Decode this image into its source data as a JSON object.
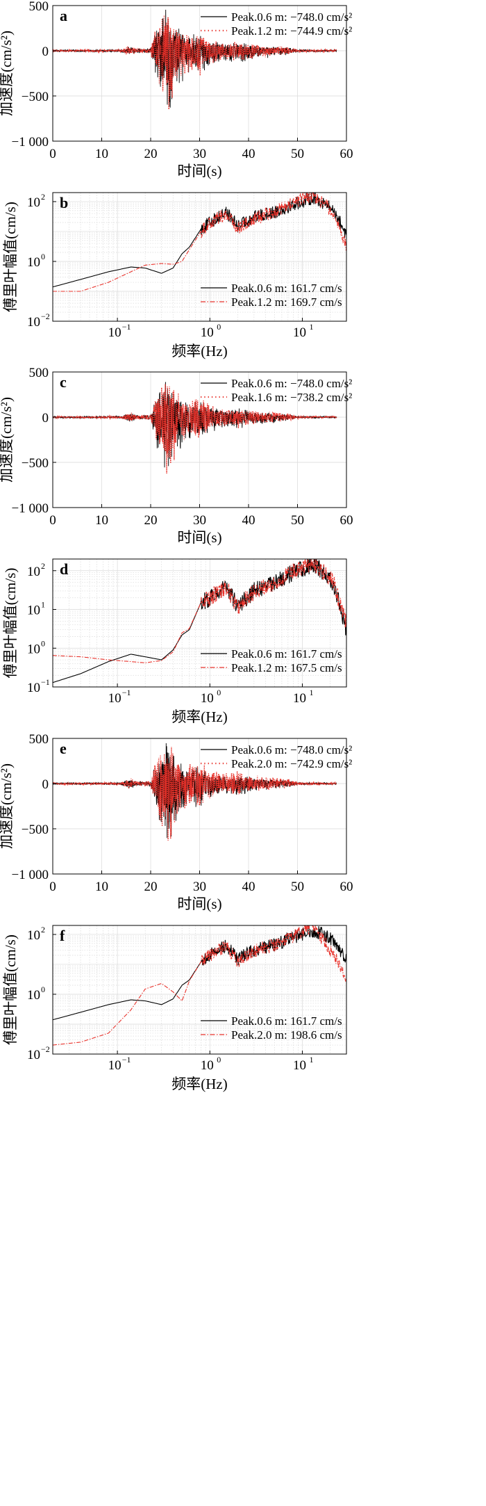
{
  "panels": [
    {
      "id": "a",
      "label": "a",
      "ylabel": "加速度(cm/s²)",
      "xlabel": "时间(s)",
      "legend": [
        "Peak.0.6 m: −748.0 cm/s²",
        "Peak.1.2 m: −744.9 cm/s²"
      ]
    },
    {
      "id": "b",
      "label": "b",
      "ylabel": "傅里叶幅值(cm/s)",
      "xlabel": "频率(Hz)",
      "legend": [
        "Peak.0.6 m: 161.7 cm/s",
        "Peak.1.2 m: 169.7 cm/s"
      ]
    },
    {
      "id": "c",
      "label": "c",
      "ylabel": "加速度(cm/s²)",
      "xlabel": "时间(s)",
      "legend": [
        "Peak.0.6 m: −748.0 cm/s²",
        "Peak.1.6 m: −738.2 cm/s²"
      ]
    },
    {
      "id": "d",
      "label": "d",
      "ylabel": "傅里叶幅值(cm/s)",
      "xlabel": "频率(Hz)",
      "legend": [
        "Peak.0.6 m: 161.7 cm/s",
        "Peak.1.2 m: 167.5 cm/s"
      ]
    },
    {
      "id": "e",
      "label": "e",
      "ylabel": "加速度(cm/s²)",
      "xlabel": "时间(s)",
      "legend": [
        "Peak.0.6 m: −748.0 cm/s²",
        "Peak.2.0 m: −742.9 cm/s²"
      ]
    },
    {
      "id": "f",
      "label": "f",
      "ylabel": "傅里叶幅值(cm/s)",
      "xlabel": "频率(Hz)",
      "legend": [
        "Peak.0.6 m: 161.7 cm/s",
        "Peak.2.0 m: 198.6 cm/s"
      ]
    }
  ],
  "colors": {
    "series_ref": "#000000",
    "series_cmp": "#e8312a",
    "grid": "#d9d9d9",
    "axis": "#000000"
  },
  "chart_data": [
    {
      "panel": "a",
      "type": "line",
      "title": "",
      "xlabel": "时间(s)",
      "ylabel": "加速度(cm/s²)",
      "xlim": [
        0,
        60
      ],
      "ylim": [
        -1000,
        500
      ],
      "xticks": [
        0,
        10,
        20,
        30,
        40,
        50,
        60
      ],
      "yticks": [
        -1000,
        -500,
        0,
        500
      ],
      "ytick_labels": [
        "−1 000",
        "−500",
        "0",
        "500"
      ],
      "grid": true,
      "legend_position": "top-right",
      "envelope_t": [
        0,
        14,
        15,
        16,
        17,
        20,
        21,
        22,
        23,
        23.5,
        24,
        25,
        26,
        27,
        28,
        29,
        30,
        32,
        34,
        36,
        38,
        40,
        42,
        44,
        46,
        48,
        50,
        58
      ],
      "series": [
        {
          "name": "Peak.0.6 m: −748.0 cm/s²",
          "style": "solid",
          "peak": -748.0,
          "envelope_pos": [
            10,
            15,
            45,
            60,
            25,
            30,
            250,
            350,
            480,
            500,
            470,
            300,
            250,
            180,
            160,
            200,
            220,
            120,
            100,
            90,
            100,
            80,
            60,
            60,
            50,
            40,
            15,
            10
          ],
          "envelope_neg": [
            -10,
            -15,
            -45,
            -60,
            -25,
            -30,
            -300,
            -500,
            -700,
            -748,
            -700,
            -500,
            -400,
            -300,
            -260,
            -280,
            -300,
            -180,
            -140,
            -120,
            -140,
            -110,
            -80,
            -80,
            -60,
            -50,
            -15,
            -10
          ]
        },
        {
          "name": "Peak.1.2 m: −744.9 cm/s²",
          "style": "dotted",
          "peak": -744.9,
          "envelope_pos": [
            10,
            15,
            45,
            60,
            25,
            30,
            260,
            380,
            480,
            500,
            480,
            320,
            260,
            200,
            170,
            210,
            230,
            130,
            110,
            95,
            110,
            85,
            70,
            65,
            55,
            45,
            15,
            10
          ],
          "envelope_neg": [
            -10,
            -15,
            -45,
            -60,
            -25,
            -30,
            -280,
            -480,
            -680,
            -744.9,
            -690,
            -480,
            -380,
            -290,
            -250,
            -270,
            -290,
            -170,
            -130,
            -110,
            -130,
            -100,
            -75,
            -75,
            -55,
            -45,
            -15,
            -10
          ]
        }
      ]
    },
    {
      "panel": "b",
      "type": "line",
      "title": "",
      "xlabel": "频率(Hz)",
      "ylabel": "傅里叶幅值(cm/s)",
      "xscale": "log",
      "yscale": "log",
      "xlim": [
        0.02,
        30
      ],
      "ylim": [
        0.01,
        200
      ],
      "xticks": [
        0.1,
        1,
        10
      ],
      "xtick_labels": [
        "10⁻¹",
        "10⁰",
        "10¹"
      ],
      "yticks": [
        0.01,
        1,
        100
      ],
      "ytick_labels": [
        "10⁻²",
        "10⁰",
        "10²"
      ],
      "grid": true,
      "legend_position": "bottom-right",
      "series": [
        {
          "name": "Peak.0.6 m: 161.7 cm/s",
          "style": "solid",
          "peak": 161.7,
          "x": [
            0.02,
            0.04,
            0.08,
            0.14,
            0.2,
            0.3,
            0.4,
            0.5,
            0.6,
            0.8,
            1.0,
            1.5,
            2,
            3,
            5,
            8,
            10,
            13,
            17,
            22,
            30
          ],
          "y": [
            0.14,
            0.25,
            0.45,
            0.65,
            0.6,
            0.4,
            0.6,
            1.8,
            3,
            12,
            20,
            45,
            15,
            30,
            45,
            80,
            100,
            140,
            90,
            50,
            8
          ]
        },
        {
          "name": "Peak.1.2 m: 169.7 cm/s",
          "style": "dashdot",
          "peak": 169.7,
          "x": [
            0.02,
            0.04,
            0.08,
            0.14,
            0.2,
            0.3,
            0.4,
            0.5,
            0.6,
            0.8,
            1.0,
            1.5,
            2,
            3,
            5,
            8,
            10,
            13,
            17,
            22,
            30
          ],
          "y": [
            0.1,
            0.1,
            0.2,
            0.45,
            0.75,
            0.85,
            0.8,
            1.0,
            2.5,
            10,
            20,
            40,
            12,
            28,
            45,
            90,
            120,
            150,
            95,
            40,
            3
          ]
        }
      ]
    },
    {
      "panel": "c",
      "type": "line",
      "title": "",
      "xlabel": "时间(s)",
      "ylabel": "加速度(cm/s²)",
      "xlim": [
        0,
        60
      ],
      "ylim": [
        -1000,
        500
      ],
      "xticks": [
        0,
        10,
        20,
        30,
        40,
        50,
        60
      ],
      "yticks": [
        -1000,
        -500,
        0,
        500
      ],
      "ytick_labels": [
        "−1 000",
        "−500",
        "0",
        "500"
      ],
      "grid": true,
      "legend_position": "top-right",
      "envelope_t": [
        0,
        14,
        15,
        16,
        17,
        20,
        21,
        22,
        23,
        23.5,
        24,
        25,
        26,
        27,
        28,
        29,
        30,
        32,
        34,
        36,
        38,
        40,
        42,
        44,
        46,
        48,
        50,
        58
      ],
      "series": [
        {
          "name": "Peak.0.6 m: −748.0 cm/s²",
          "style": "solid",
          "peak": -748.0,
          "envelope_pos": [
            10,
            15,
            45,
            60,
            25,
            30,
            250,
            350,
            480,
            500,
            470,
            300,
            250,
            180,
            160,
            200,
            220,
            120,
            100,
            90,
            100,
            80,
            60,
            60,
            50,
            40,
            15,
            10
          ],
          "envelope_neg": [
            -10,
            -15,
            -45,
            -60,
            -25,
            -30,
            -300,
            -500,
            -700,
            -748,
            -700,
            -500,
            -400,
            -300,
            -260,
            -280,
            -300,
            -180,
            -140,
            -120,
            -140,
            -110,
            -80,
            -80,
            -60,
            -50,
            -15,
            -10
          ]
        },
        {
          "name": "Peak.1.6 m: −738.2 cm/s²",
          "style": "dotted",
          "peak": -738.2,
          "envelope_pos": [
            10,
            15,
            45,
            60,
            25,
            30,
            270,
            400,
            490,
            500,
            480,
            330,
            280,
            210,
            180,
            230,
            250,
            140,
            120,
            100,
            120,
            90,
            75,
            70,
            60,
            50,
            15,
            10
          ],
          "envelope_neg": [
            -10,
            -15,
            -45,
            -60,
            -25,
            -30,
            -270,
            -460,
            -670,
            -738.2,
            -680,
            -470,
            -370,
            -280,
            -240,
            -260,
            -280,
            -160,
            -125,
            -105,
            -125,
            -95,
            -70,
            -70,
            -55,
            -45,
            -15,
            -10
          ]
        }
      ]
    },
    {
      "panel": "d",
      "type": "line",
      "title": "",
      "xlabel": "频率(Hz)",
      "ylabel": "傅里叶幅值(cm/s)",
      "xscale": "log",
      "yscale": "log",
      "xlim": [
        0.02,
        30
      ],
      "ylim": [
        0.1,
        200
      ],
      "xticks": [
        0.1,
        1,
        10
      ],
      "xtick_labels": [
        "10⁻¹",
        "10⁰",
        "10¹"
      ],
      "yticks": [
        0.1,
        1,
        10,
        100
      ],
      "ytick_labels": [
        "10⁻¹",
        "10⁰",
        "10¹",
        "10²"
      ],
      "grid": true,
      "legend_position": "bottom-right",
      "series": [
        {
          "name": "Peak.0.6 m: 161.7 cm/s",
          "style": "solid",
          "peak": 161.7,
          "x": [
            0.02,
            0.04,
            0.08,
            0.14,
            0.2,
            0.3,
            0.4,
            0.5,
            0.6,
            0.8,
            1.0,
            1.5,
            2,
            3,
            5,
            8,
            10,
            13,
            17,
            22,
            30
          ],
          "y": [
            0.13,
            0.22,
            0.45,
            0.7,
            0.6,
            0.5,
            0.9,
            2.2,
            3,
            15,
            20,
            40,
            12,
            30,
            50,
            90,
            110,
            150,
            90,
            40,
            3
          ]
        },
        {
          "name": "Peak.1.2 m: 167.5 cm/s",
          "style": "dashdot",
          "peak": 167.5,
          "x": [
            0.02,
            0.04,
            0.08,
            0.14,
            0.2,
            0.3,
            0.4,
            0.5,
            0.6,
            0.8,
            1.0,
            1.5,
            2,
            3,
            5,
            8,
            10,
            13,
            17,
            22,
            30
          ],
          "y": [
            0.65,
            0.6,
            0.5,
            0.45,
            0.42,
            0.48,
            0.8,
            2.5,
            3.2,
            15,
            20,
            38,
            12,
            28,
            48,
            95,
            120,
            160,
            95,
            45,
            4
          ]
        }
      ]
    },
    {
      "panel": "e",
      "type": "line",
      "title": "",
      "xlabel": "时间(s)",
      "ylabel": "加速度(cm/s²)",
      "xlim": [
        0,
        60
      ],
      "ylim": [
        -1000,
        500
      ],
      "xticks": [
        0,
        10,
        20,
        30,
        40,
        50,
        60
      ],
      "yticks": [
        -1000,
        -500,
        0,
        500
      ],
      "ytick_labels": [
        "−1 000",
        "−500",
        "0",
        "500"
      ],
      "grid": true,
      "legend_position": "top-right",
      "envelope_t": [
        0,
        14,
        15,
        16,
        17,
        20,
        21,
        22,
        23,
        23.5,
        24,
        25,
        26,
        27,
        28,
        29,
        30,
        32,
        34,
        36,
        38,
        40,
        42,
        44,
        46,
        48,
        50,
        58
      ],
      "series": [
        {
          "name": "Peak.0.6 m: −748.0 cm/s²",
          "style": "solid",
          "peak": -748.0,
          "envelope_pos": [
            10,
            15,
            45,
            60,
            25,
            30,
            250,
            350,
            480,
            500,
            470,
            300,
            250,
            180,
            160,
            200,
            220,
            120,
            100,
            90,
            100,
            80,
            60,
            60,
            50,
            40,
            15,
            10
          ],
          "envelope_neg": [
            -10,
            -15,
            -45,
            -60,
            -25,
            -30,
            -300,
            -500,
            -700,
            -748,
            -700,
            -500,
            -400,
            -300,
            -260,
            -280,
            -300,
            -180,
            -140,
            -120,
            -140,
            -110,
            -80,
            -80,
            -60,
            -50,
            -15,
            -10
          ]
        },
        {
          "name": "Peak.2.0 m: −742.9 cm/s²",
          "style": "dotted",
          "peak": -742.9,
          "envelope_pos": [
            10,
            15,
            50,
            65,
            30,
            35,
            300,
            430,
            500,
            500,
            490,
            380,
            320,
            260,
            220,
            280,
            290,
            170,
            140,
            120,
            150,
            110,
            90,
            85,
            70,
            60,
            20,
            10
          ],
          "envelope_neg": [
            -10,
            -15,
            -50,
            -65,
            -30,
            -35,
            -300,
            -480,
            -680,
            -742.9,
            -690,
            -500,
            -400,
            -320,
            -280,
            -300,
            -320,
            -190,
            -150,
            -130,
            -150,
            -115,
            -85,
            -85,
            -65,
            -55,
            -20,
            -10
          ]
        }
      ]
    },
    {
      "panel": "f",
      "type": "line",
      "title": "",
      "xlabel": "频率(Hz)",
      "ylabel": "傅里叶幅值(cm/s)",
      "xscale": "log",
      "yscale": "log",
      "xlim": [
        0.02,
        30
      ],
      "ylim": [
        0.01,
        200
      ],
      "xticks": [
        0.1,
        1,
        10
      ],
      "xtick_labels": [
        "10⁻¹",
        "10⁰",
        "10¹"
      ],
      "yticks": [
        0.01,
        1,
        100
      ],
      "ytick_labels": [
        "10⁻²",
        "10⁰",
        "10²"
      ],
      "grid": true,
      "legend_position": "bottom-right",
      "series": [
        {
          "name": "Peak.0.6 m: 161.7 cm/s",
          "style": "solid",
          "peak": 161.7,
          "x": [
            0.02,
            0.04,
            0.08,
            0.14,
            0.2,
            0.3,
            0.4,
            0.5,
            0.6,
            0.8,
            1.0,
            1.5,
            2,
            3,
            5,
            8,
            10,
            13,
            17,
            22,
            30
          ],
          "y": [
            0.14,
            0.25,
            0.45,
            0.65,
            0.6,
            0.45,
            0.7,
            2.0,
            3,
            12,
            20,
            45,
            15,
            30,
            45,
            80,
            100,
            130,
            100,
            60,
            15
          ]
        },
        {
          "name": "Peak.2.0 m: 198.6 cm/s",
          "style": "dashdot",
          "peak": 198.6,
          "x": [
            0.02,
            0.04,
            0.08,
            0.14,
            0.2,
            0.3,
            0.4,
            0.5,
            0.6,
            0.8,
            1.0,
            1.5,
            2,
            3,
            5,
            8,
            10,
            13,
            17,
            22,
            30
          ],
          "y": [
            0.02,
            0.025,
            0.05,
            0.3,
            1.5,
            2.3,
            1.2,
            0.6,
            2.8,
            12,
            20,
            40,
            12,
            28,
            45,
            90,
            130,
            190,
            60,
            20,
            3
          ]
        }
      ]
    }
  ]
}
